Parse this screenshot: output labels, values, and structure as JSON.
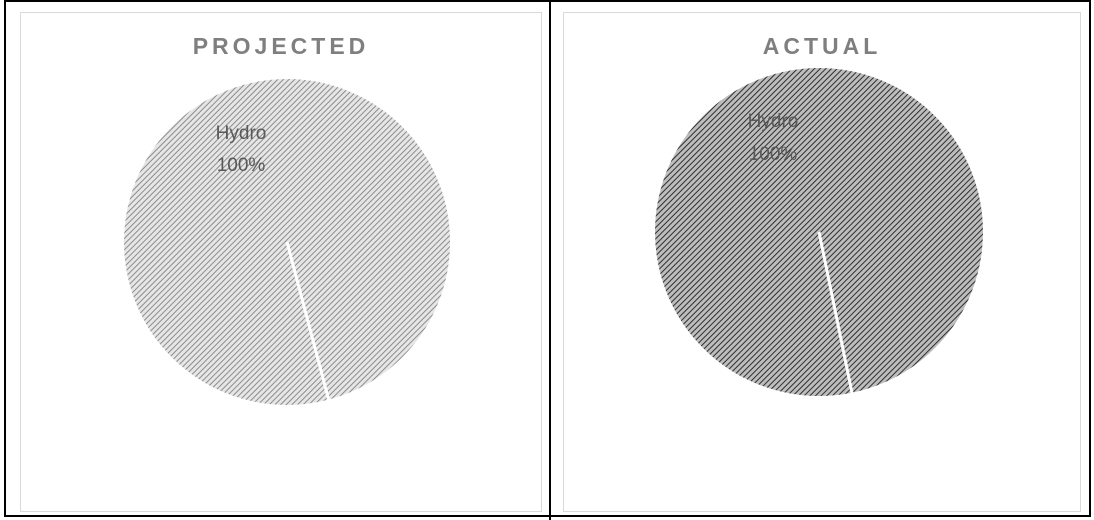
{
  "chart_data": [
    {
      "type": "pie",
      "title": "PROJECTED",
      "slices": [
        {
          "label": "Hydro",
          "value": 100,
          "value_label": "100%"
        }
      ],
      "colors": {
        "pattern_bg": "#e6e6e6",
        "pattern_line": "#8c8c8c"
      },
      "legend": "none"
    },
    {
      "type": "pie",
      "title": "ACTUAL",
      "slices": [
        {
          "label": "Hydro",
          "value": 100,
          "value_label": "100%"
        }
      ],
      "colors": {
        "pattern_bg": "#bdbdbd",
        "pattern_line": "#2e2e2e"
      },
      "legend": "none"
    }
  ]
}
